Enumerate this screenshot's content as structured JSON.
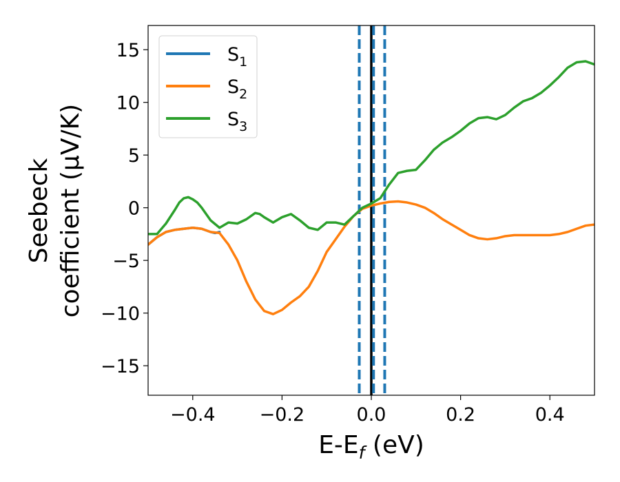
{
  "chart_data": {
    "type": "line",
    "xlabel": {
      "main": "E-E",
      "sub": "f",
      "tail": " (eV)"
    },
    "ylabel": {
      "line1": "Seebeck",
      "line2": "coefficient  (μV/K)"
    },
    "xlim": [
      -0.5,
      0.5
    ],
    "ylim": [
      -17.8,
      17.3
    ],
    "xticks": [
      -0.4,
      -0.2,
      0.0,
      0.2,
      0.4
    ],
    "xtick_labels": [
      "−0.4",
      "−0.2",
      "0.0",
      "0.2",
      "0.4"
    ],
    "yticks": [
      -15,
      -10,
      -5,
      0,
      5,
      10,
      15
    ],
    "ytick_labels": [
      "−15",
      "−10",
      "−5",
      "0",
      "5",
      "10",
      "15"
    ],
    "grid": false,
    "legend_position": "top-left",
    "vlines": [
      {
        "x": -0.027,
        "color": "#1f77b4",
        "style": "dashed"
      },
      {
        "x": 0.0,
        "color": "#000000",
        "style": "solid"
      },
      {
        "x": 0.005,
        "color": "#1f77b4",
        "style": "dashed"
      },
      {
        "x": 0.03,
        "color": "#1f77b4",
        "style": "dashed"
      }
    ],
    "series": [
      {
        "name": "S",
        "sub": "1",
        "color": "#1f77b4",
        "x": [
          -0.5,
          -0.48,
          -0.46,
          -0.44,
          -0.42,
          -0.4,
          -0.38,
          -0.36,
          -0.35,
          -0.34
        ],
        "y": [
          -3.5,
          -2.8,
          -2.3,
          -2.1,
          -2.0,
          -1.9,
          -2.0,
          -2.3,
          -2.4,
          -2.3
        ]
      },
      {
        "name": "S",
        "sub": "2",
        "color": "#ff7f0e",
        "x": [
          -0.5,
          -0.48,
          -0.46,
          -0.44,
          -0.42,
          -0.4,
          -0.38,
          -0.36,
          -0.34,
          -0.32,
          -0.3,
          -0.28,
          -0.26,
          -0.24,
          -0.22,
          -0.2,
          -0.18,
          -0.16,
          -0.14,
          -0.12,
          -0.1,
          -0.08,
          -0.06,
          -0.04,
          -0.02,
          0.0,
          0.02,
          0.04,
          0.06,
          0.08,
          0.1,
          0.12,
          0.14,
          0.16,
          0.18,
          0.2,
          0.22,
          0.24,
          0.26,
          0.28,
          0.3,
          0.32,
          0.34,
          0.36,
          0.38,
          0.4,
          0.42,
          0.44,
          0.46,
          0.48,
          0.5
        ],
        "y": [
          -3.5,
          -2.8,
          -2.3,
          -2.1,
          -2.0,
          -1.9,
          -2.0,
          -2.3,
          -2.4,
          -3.5,
          -5.0,
          -7.0,
          -8.7,
          -9.8,
          -10.1,
          -9.7,
          -9.0,
          -8.4,
          -7.5,
          -6.0,
          -4.2,
          -3.0,
          -1.8,
          -0.8,
          -0.1,
          0.2,
          0.4,
          0.55,
          0.6,
          0.5,
          0.3,
          0.0,
          -0.5,
          -1.1,
          -1.6,
          -2.1,
          -2.6,
          -2.9,
          -3.0,
          -2.9,
          -2.7,
          -2.6,
          -2.6,
          -2.6,
          -2.6,
          -2.6,
          -2.5,
          -2.3,
          -2.0,
          -1.7,
          -1.6
        ]
      },
      {
        "name": "S",
        "sub": "3",
        "color": "#2ca02c",
        "x": [
          -0.5,
          -0.48,
          -0.46,
          -0.44,
          -0.43,
          -0.42,
          -0.41,
          -0.4,
          -0.39,
          -0.38,
          -0.36,
          -0.34,
          -0.32,
          -0.3,
          -0.28,
          -0.26,
          -0.25,
          -0.24,
          -0.22,
          -0.2,
          -0.18,
          -0.17,
          -0.16,
          -0.14,
          -0.12,
          -0.1,
          -0.08,
          -0.06,
          -0.04,
          -0.02,
          0.0,
          0.02,
          0.04,
          0.06,
          0.08,
          0.1,
          0.12,
          0.14,
          0.16,
          0.18,
          0.2,
          0.22,
          0.24,
          0.26,
          0.28,
          0.3,
          0.32,
          0.34,
          0.36,
          0.38,
          0.4,
          0.42,
          0.44,
          0.46,
          0.48,
          0.5
        ],
        "y": [
          -2.5,
          -2.5,
          -1.5,
          -0.2,
          0.5,
          0.9,
          1.0,
          0.8,
          0.5,
          0.0,
          -1.2,
          -1.9,
          -1.4,
          -1.5,
          -1.1,
          -0.5,
          -0.6,
          -0.9,
          -1.4,
          -0.9,
          -0.6,
          -0.9,
          -1.2,
          -1.9,
          -2.1,
          -1.4,
          -1.4,
          -1.6,
          -0.8,
          0.0,
          0.4,
          0.9,
          2.2,
          3.3,
          3.5,
          3.6,
          4.5,
          5.5,
          6.2,
          6.7,
          7.3,
          8.0,
          8.5,
          8.6,
          8.4,
          8.8,
          9.5,
          10.1,
          10.4,
          10.9,
          11.6,
          12.4,
          13.3,
          13.8,
          13.9,
          13.6
        ]
      }
    ]
  }
}
